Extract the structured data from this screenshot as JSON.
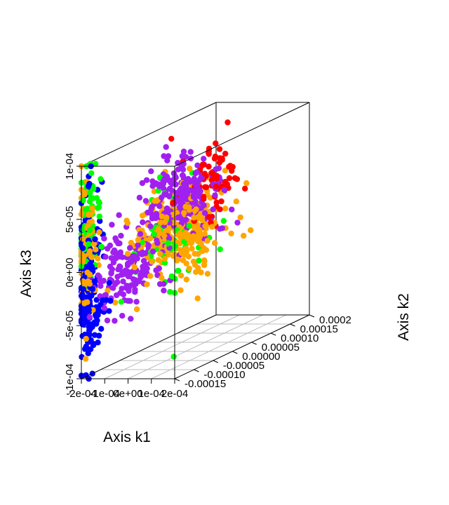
{
  "chart_data": {
    "type": "scatter",
    "title": "",
    "xlabel": "Axis k1",
    "ylabel": "Axis k2",
    "zlabel": "Axis k3",
    "x_ticks": [
      "-2e-04",
      "-1e-04",
      "0e+00",
      "1e-04",
      "2e-04"
    ],
    "y_ticks": [
      "-0.00015",
      "-0.00010",
      "-0.00005",
      "0.00000",
      "0.00005",
      "0.00010",
      "0.00015",
      "0.0002"
    ],
    "z_ticks": [
      "-1e-04",
      "-5e-05",
      "0e+00",
      "5e-05",
      "1e-04"
    ],
    "xlim": [
      -0.0002,
      0.0002
    ],
    "ylim": [
      -0.00015,
      0.0002
    ],
    "zlim": [
      -0.0001,
      0.0001
    ],
    "grid": "floor",
    "box": "full",
    "legend": "none",
    "series": [
      {
        "color": "#0000ff",
        "clusters": [
          {
            "x": -0.00018,
            "y": -0.00016,
            "z": 0.0,
            "sx": 1.8e-05,
            "sy": 2.5e-05,
            "sz": 4e-05,
            "n": 150
          },
          {
            "x": -0.00016,
            "y": -0.00016,
            "z": -4e-05,
            "sx": 2.5e-05,
            "sy": 2e-05,
            "sz": 1.5e-05,
            "n": 60
          }
        ]
      },
      {
        "color": "#00ff00",
        "clusters": [
          {
            "x": -0.00018,
            "y": -0.00016,
            "z": 4e-05,
            "sx": 2e-05,
            "sy": 2e-05,
            "sz": 3e-05,
            "n": 80
          },
          {
            "x": -8e-05,
            "y": 0.0,
            "z": 0.0,
            "sx": 5e-05,
            "sy": 5e-05,
            "sz": 2.5e-05,
            "n": 60
          }
        ]
      },
      {
        "color": "#ffa500",
        "clusters": [
          {
            "x": -0.00018,
            "y": -0.00016,
            "z": 2e-05,
            "sx": 2e-05,
            "sy": 2e-05,
            "sz": 3e-05,
            "n": 90
          },
          {
            "x": -6e-05,
            "y": 2e-05,
            "z": 1e-05,
            "sx": 6e-05,
            "sy": 5e-05,
            "sz": 2.2e-05,
            "n": 300
          }
        ]
      },
      {
        "color": "#a020f0",
        "clusters": [
          {
            "x": -0.00012,
            "y": -8e-05,
            "z": -1e-05,
            "sx": 3.5e-05,
            "sy": 4e-05,
            "sz": 2e-05,
            "n": 160
          },
          {
            "x": -5e-05,
            "y": 2e-05,
            "z": 4e-05,
            "sx": 5e-05,
            "sy": 4e-05,
            "sz": 2e-05,
            "n": 260
          }
        ]
      },
      {
        "color": "#ff0000",
        "clusters": [
          {
            "x": 0.0,
            "y": 6e-05,
            "z": 5e-05,
            "sx": 3e-05,
            "sy": 3e-05,
            "sz": 1.8e-05,
            "n": 80
          }
        ]
      }
    ]
  }
}
